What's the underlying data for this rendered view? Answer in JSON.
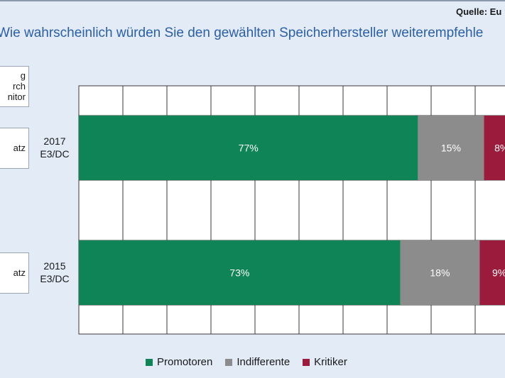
{
  "source": "Quelle: Eu",
  "title": "Wie wahrscheinlich würden Sie den gewählten Speicherhersteller weiterempfehle",
  "panel": {
    "lines": [
      "g",
      "rch",
      "nitor"
    ]
  },
  "groups": [
    {
      "card": "atz",
      "label_year": "2017",
      "label_type": "E3/DC"
    },
    {
      "card": "atz",
      "label_year": "2015",
      "label_type": "E3/DC"
    }
  ],
  "colors": {
    "background": "#e2ebf6",
    "title": "#2b5fa6",
    "promotoren": "#0f8456",
    "indifferente": "#8c8c8c",
    "kritiker": "#9b1b3d"
  },
  "chart_data": {
    "type": "bar",
    "orientation": "horizontal",
    "stacked": true,
    "categories": [
      "2017 E3/DC",
      "2015 E3/DC"
    ],
    "series": [
      {
        "name": "Promotoren",
        "values": [
          77,
          73
        ],
        "labels": [
          "77%",
          "73%"
        ]
      },
      {
        "name": "Indifferente",
        "values": [
          15,
          18
        ],
        "labels": [
          "15%",
          "18%"
        ]
      },
      {
        "name": "Kritiker",
        "values": [
          8,
          9
        ],
        "labels": [
          "8%",
          "9%"
        ]
      }
    ],
    "xlim": [
      0,
      100
    ],
    "grid": true,
    "legend_position": "bottom"
  }
}
